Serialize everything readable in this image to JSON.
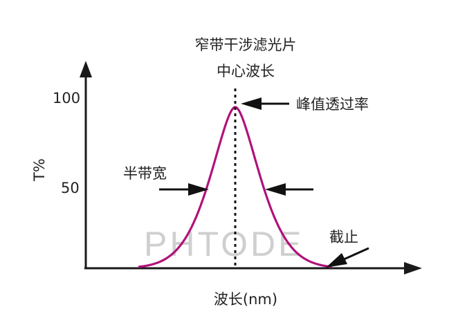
{
  "title_line1": "窄带干涉滤光片",
  "title_line2": "中心波长",
  "peak_label": "峰值透过率",
  "fwhm_label": "半带宽",
  "cutoff_label": "截止",
  "watermark": "PHTODE",
  "y_axis": {
    "label": "T%",
    "ticks": [
      "100",
      "50"
    ]
  },
  "x_axis": {
    "label": "波长(nm)"
  },
  "colors": {
    "curve": "#b0127a",
    "axes": "#1a1a1a",
    "watermark": "#cfcfcf"
  }
}
